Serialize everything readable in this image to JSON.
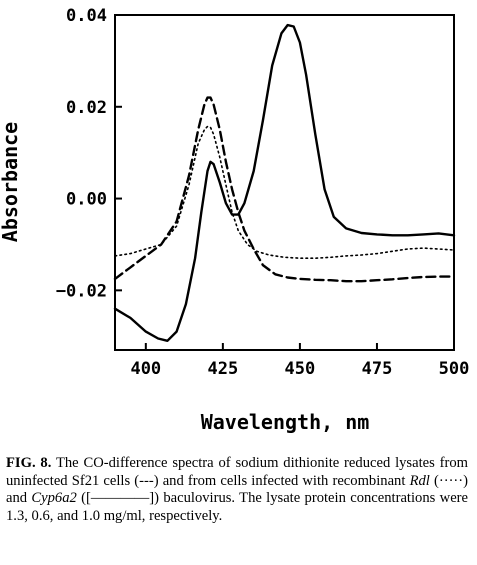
{
  "chart_data": {
    "type": "line",
    "xlabel": "Wavelength, nm",
    "ylabel": "Absorbance",
    "xlim": [
      390,
      500
    ],
    "ylim": [
      -0.033,
      0.04
    ],
    "xticks": [
      400,
      425,
      450,
      475,
      500
    ],
    "xtick_labels": [
      "400",
      "425",
      "450",
      "475",
      "500"
    ],
    "yticks": [
      -0.02,
      0.0,
      0.02,
      0.04
    ],
    "ytick_labels": [
      "−0.02",
      "0.00",
      "0.02",
      "0.04"
    ],
    "grid": false,
    "series": [
      {
        "style": "dashed",
        "x": [
          390,
          395,
          400,
          405,
          410,
          414,
          417,
          419,
          420,
          421,
          422,
          424,
          426,
          428,
          430,
          432,
          435,
          438,
          442,
          446,
          450,
          455,
          460,
          465,
          470,
          475,
          480,
          485,
          490,
          495,
          500
        ],
        "y": [
          -0.0175,
          -0.015,
          -0.0125,
          -0.01,
          -0.005,
          0.005,
          0.015,
          0.0205,
          0.022,
          0.022,
          0.0205,
          0.015,
          0.008,
          0.002,
          -0.003,
          -0.007,
          -0.011,
          -0.0145,
          -0.0165,
          -0.0172,
          -0.0175,
          -0.0177,
          -0.0178,
          -0.018,
          -0.018,
          -0.0178,
          -0.0176,
          -0.0173,
          -0.0171,
          -0.017,
          -0.017
        ]
      },
      {
        "style": "dotted",
        "x": [
          390,
          395,
          400,
          405,
          410,
          414,
          417,
          419,
          420,
          421,
          422,
          424,
          426,
          428,
          430,
          433,
          436,
          440,
          445,
          450,
          455,
          460,
          465,
          470,
          475,
          480,
          485,
          490,
          495,
          500
        ],
        "y": [
          -0.0125,
          -0.012,
          -0.011,
          -0.01,
          -0.006,
          0.003,
          0.012,
          0.015,
          0.0157,
          0.0155,
          0.014,
          0.009,
          0.003,
          -0.003,
          -0.007,
          -0.01,
          -0.0115,
          -0.0123,
          -0.0128,
          -0.013,
          -0.013,
          -0.0128,
          -0.0125,
          -0.0123,
          -0.012,
          -0.0115,
          -0.011,
          -0.0108,
          -0.011,
          -0.0112
        ]
      },
      {
        "style": "solid",
        "x": [
          390,
          395,
          400,
          404,
          407,
          410,
          413,
          416,
          418,
          420,
          421,
          422,
          424,
          426,
          428,
          430,
          432,
          435,
          438,
          441,
          444,
          446,
          448,
          450,
          452,
          455,
          458,
          461,
          465,
          470,
          475,
          480,
          485,
          490,
          495,
          500
        ],
        "y": [
          -0.024,
          -0.026,
          -0.029,
          -0.0305,
          -0.031,
          -0.029,
          -0.023,
          -0.013,
          -0.003,
          0.006,
          0.008,
          0.0075,
          0.0035,
          -0.001,
          -0.0035,
          -0.0035,
          -0.001,
          0.006,
          0.017,
          0.029,
          0.036,
          0.0378,
          0.0375,
          0.034,
          0.027,
          0.014,
          0.002,
          -0.004,
          -0.0065,
          -0.0075,
          -0.0078,
          -0.008,
          -0.008,
          -0.0078,
          -0.0076,
          -0.008
        ]
      }
    ]
  },
  "caption": {
    "label": "FIG. 8.",
    "text_1": "The CO-difference spectra of sodium dithionite reduced lysates from uninfected Sf21 cells (---) and from cells infected with recombinant",
    "gene_1": "Rdl",
    "text_2": "(·····) and",
    "gene_2": "Cyp6a2",
    "text_3": "([————])",
    "text_4": "baculovirus. The lysate protein concentrations were 1.3, 0.6, and 1.0 mg/ml, respectively."
  }
}
